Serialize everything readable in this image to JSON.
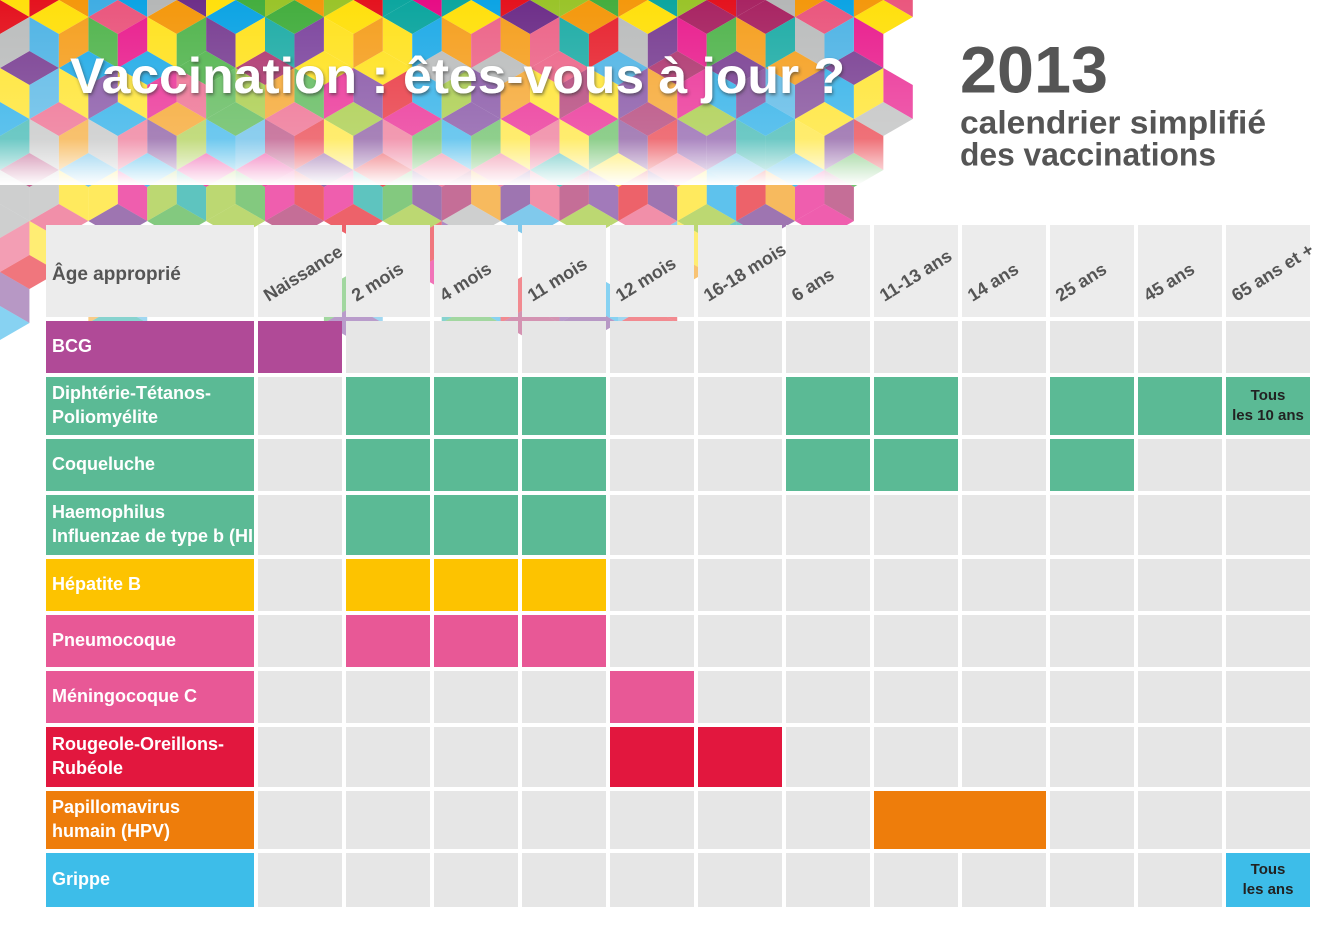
{
  "header": {
    "title": "Vaccination : êtes-vous à jour ?",
    "year": "2013",
    "subtitle": [
      "calendrier simplifié",
      "des vaccinations"
    ]
  },
  "table": {
    "corner": "Âge approprié",
    "columns": [
      "Naissance",
      "2 mois",
      "4 mois",
      "11 mois",
      "12 mois",
      "16-18 mois",
      "6 ans",
      "11-13 ans",
      "14 ans",
      "25 ans",
      "45 ans",
      "65 ans et +"
    ],
    "rows": [
      {
        "label": [
          "BCG"
        ]
      },
      {
        "label": [
          "Diphtérie-Tétanos-",
          "Poliomyélite"
        ],
        "note": [
          "Tous",
          "les 10 ans"
        ]
      },
      {
        "label": [
          "Coqueluche"
        ]
      },
      {
        "label": [
          "Haemophilus",
          "Influenzae de type b (HIB)"
        ]
      },
      {
        "label": [
          "Hépatite B"
        ]
      },
      {
        "label": [
          "Pneumocoque"
        ]
      },
      {
        "label": [
          "Méningocoque C"
        ]
      },
      {
        "label": [
          "Rougeole-Oreillons-",
          "Rubéole"
        ]
      },
      {
        "label": [
          "Papillomavirus",
          "humain (HPV)"
        ]
      },
      {
        "label": [
          "Grippe"
        ],
        "note": [
          "Tous",
          "les ans"
        ]
      }
    ]
  }
}
